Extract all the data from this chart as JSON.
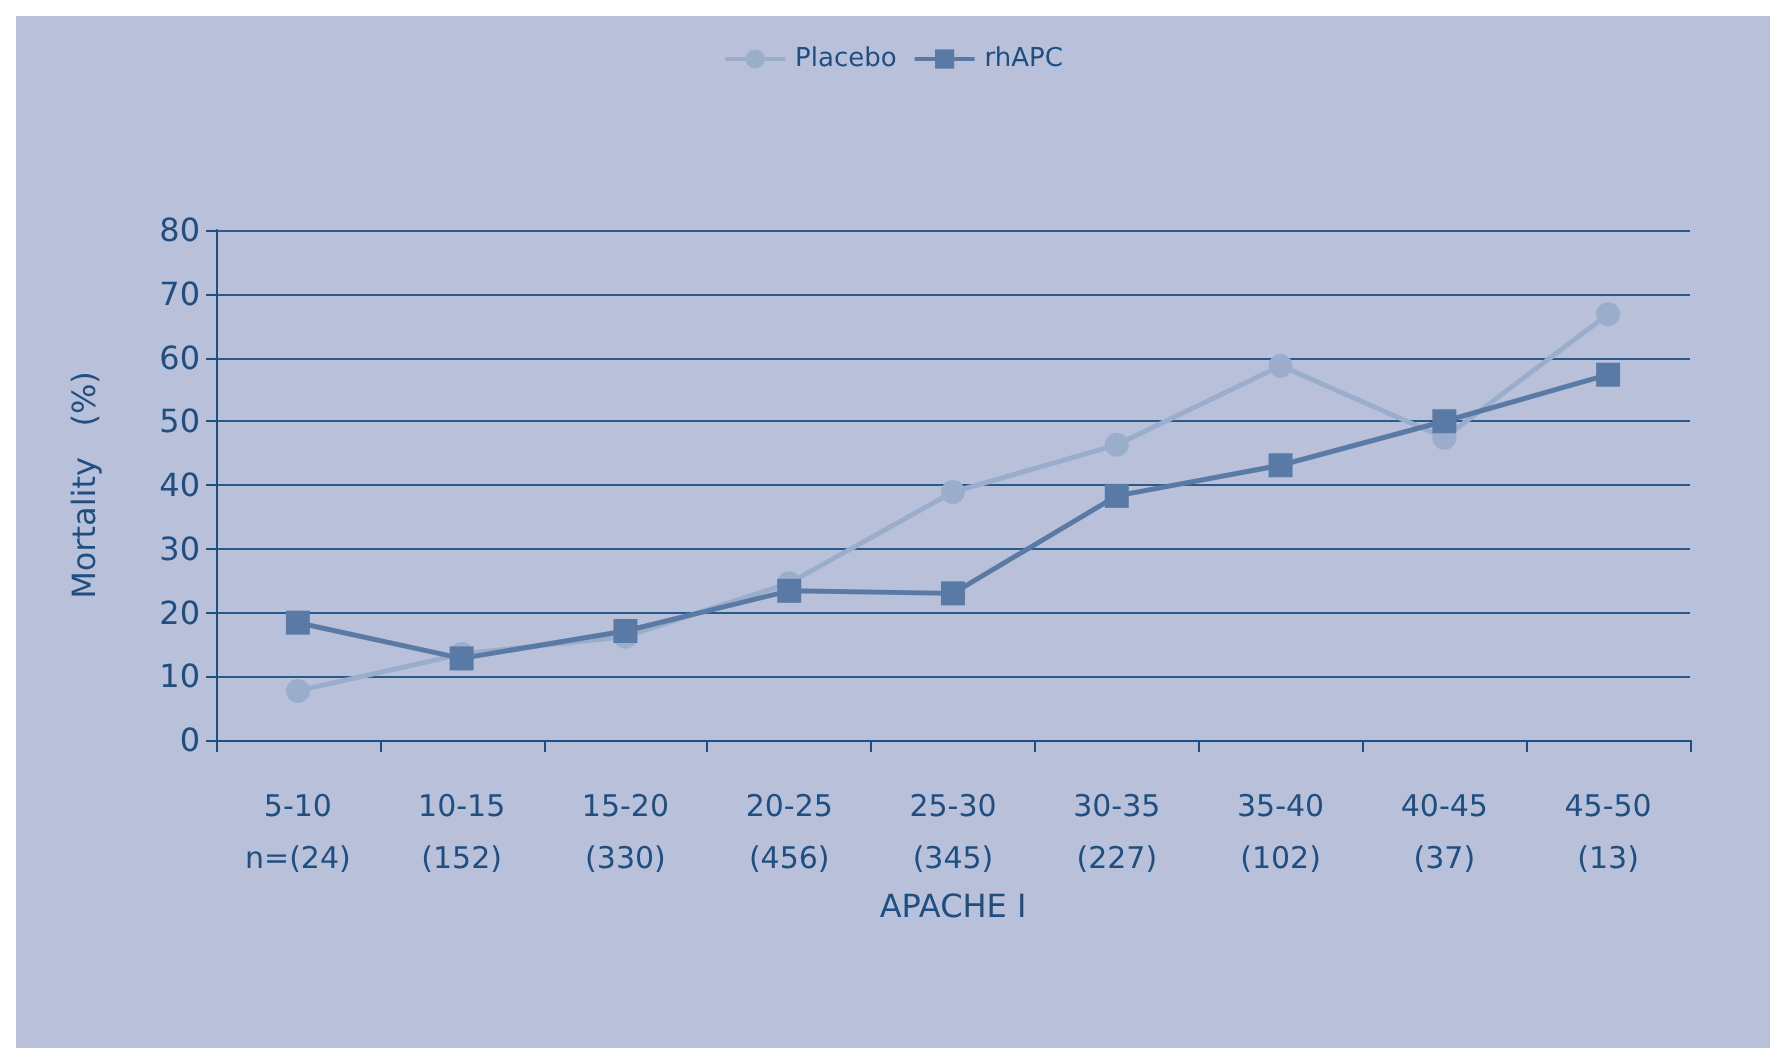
{
  "chart_data": {
    "type": "line",
    "xlabel": "APACHE I",
    "ylabel": "Mortality   (%)",
    "categories": [
      "5-10\nn=(24)",
      "10-15\n(152)",
      "15-20\n(330)",
      "20-25\n(456)",
      "25-30\n(345)",
      "30-35\n(227)",
      "35-40\n(102)",
      "40-45\n(37)",
      "45-50\n(13)"
    ],
    "series": [
      {
        "name": "Placebo",
        "color": "#9aaecc",
        "marker": "circle",
        "values": [
          7.7,
          13.5,
          16.2,
          24.6,
          38.9,
          46.3,
          58.7,
          47.4,
          66.8
        ]
      },
      {
        "name": "rhAPC",
        "color": "#5a7aa6",
        "marker": "square",
        "values": [
          18.4,
          12.8,
          17.1,
          23.4,
          23.0,
          38.3,
          43.1,
          50.0,
          57.3
        ]
      }
    ],
    "ylim": [
      0,
      80
    ],
    "yticks": [
      0,
      10,
      20,
      30,
      40,
      50,
      60,
      70,
      80
    ],
    "grid": "y",
    "legend": "top",
    "line_style": "solid"
  }
}
